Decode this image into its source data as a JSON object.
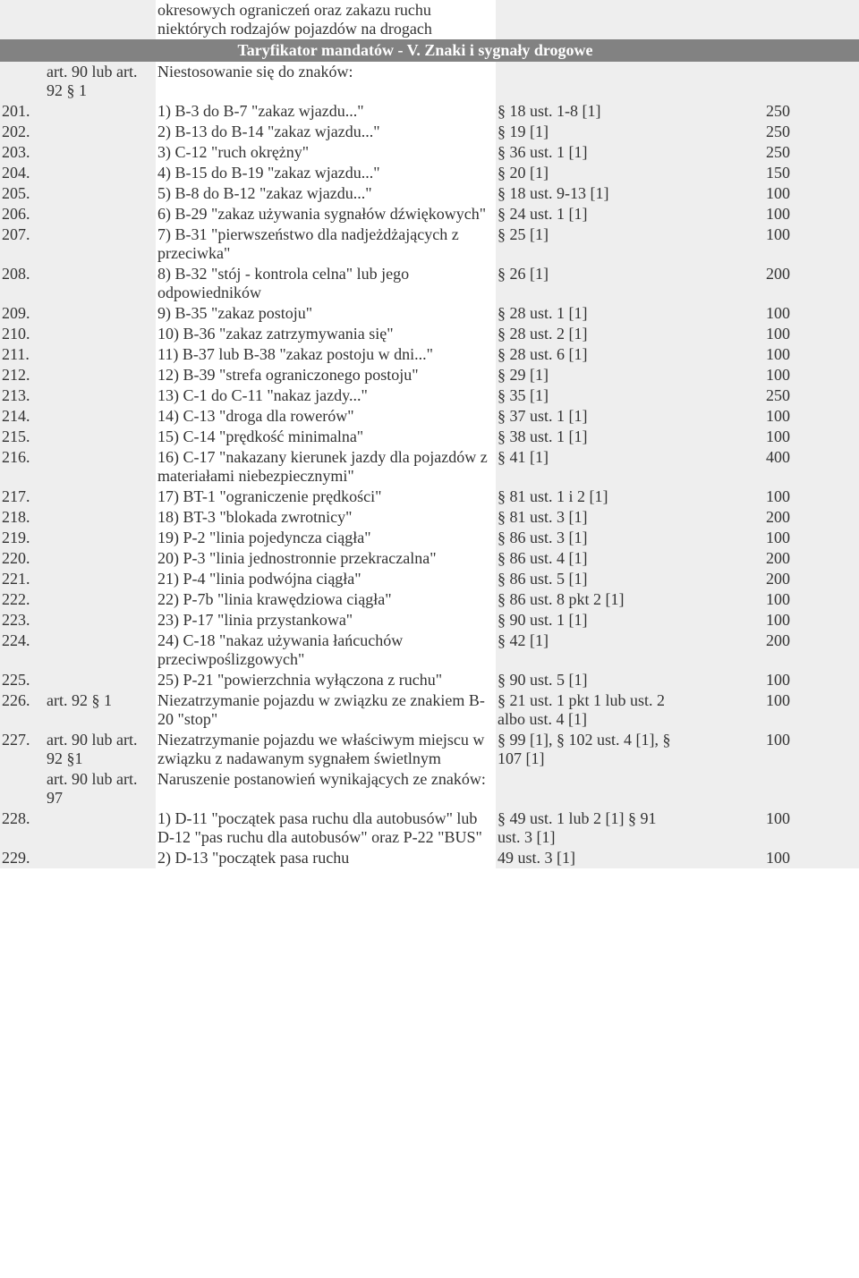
{
  "header_top": {
    "desc": "okresowych ograniczeń oraz zakazu ruchu niektórych rodzajów pojazdów na drogach"
  },
  "section_title": "Taryfikator mandatów - V. Znaki i sygnały drogowe",
  "intro_row": {
    "art": "art. 90 lub art. 92 § 1",
    "desc": "Niestosowanie się do znaków:"
  },
  "rows": [
    {
      "num": "201.",
      "art": "",
      "desc": "1) B-3 do B-7 \"zakaz wjazdu...\"",
      "ref": "§ 18 ust. 1-8 [1]",
      "pen": "250"
    },
    {
      "num": "202.",
      "art": "",
      "desc": "2) B-13 do B-14 \"zakaz wjazdu...\"",
      "ref": "§ 19 [1]",
      "pen": "250"
    },
    {
      "num": "203.",
      "art": "",
      "desc": "3) C-12 \"ruch okrężny\"",
      "ref": "§ 36 ust. 1 [1]",
      "pen": "250"
    },
    {
      "num": "204.",
      "art": "",
      "desc": "4) B-15 do B-19 \"zakaz wjazdu...\"",
      "ref": "§ 20 [1]",
      "pen": "150"
    },
    {
      "num": "205.",
      "art": "",
      "desc": "5) B-8 do B-12 \"zakaz wjazdu...\"",
      "ref": "§ 18 ust. 9-13 [1]",
      "pen": "100"
    },
    {
      "num": "206.",
      "art": "",
      "desc": "6) B-29 \"zakaz używania sygnałów dźwiękowych\"",
      "ref": "§ 24 ust. 1 [1]",
      "pen": "100"
    },
    {
      "num": "207.",
      "art": "",
      "desc": "7) B-31 \"pierwszeństwo dla nadjeżdżających z przeciwka\"",
      "ref": "§ 25 [1]",
      "pen": "100"
    },
    {
      "num": "208.",
      "art": "",
      "desc": "8) B-32 \"stój - kontrola celna\" lub jego odpowiedników",
      "ref": "§ 26 [1]",
      "pen": "200"
    },
    {
      "num": "209.",
      "art": "",
      "desc": "9) B-35 \"zakaz postoju\"",
      "ref": "§ 28 ust. 1 [1]",
      "pen": "100"
    },
    {
      "num": "210.",
      "art": "",
      "desc": "10) B-36 \"zakaz zatrzymywania się\"",
      "ref": "§ 28 ust. 2 [1]",
      "pen": "100"
    },
    {
      "num": "211.",
      "art": "",
      "desc": "11) B-37 lub B-38 \"zakaz postoju w dni...\"",
      "ref": "§ 28 ust. 6 [1]",
      "pen": "100"
    },
    {
      "num": "212.",
      "art": "",
      "desc": "12) B-39 \"strefa ograniczonego postoju\"",
      "ref": "§ 29 [1]",
      "pen": "100"
    },
    {
      "num": "213.",
      "art": "",
      "desc": "13) C-1 do C-11 \"nakaz jazdy...\"",
      "ref": "§ 35 [1]",
      "pen": "250"
    },
    {
      "num": "214.",
      "art": "",
      "desc": "14) C-13 \"droga dla rowerów\"",
      "ref": "§ 37 ust. 1 [1]",
      "pen": "100"
    },
    {
      "num": "215.",
      "art": "",
      "desc": "15) C-14 \"prędkość minimalna\"",
      "ref": "§ 38 ust. 1 [1]",
      "pen": "100"
    },
    {
      "num": "216.",
      "art": "",
      "desc": "16) C-17 \"nakazany kierunek jazdy dla pojazdów z materiałami niebezpiecznymi\"",
      "ref": "§ 41 [1]",
      "pen": "400"
    },
    {
      "num": "217.",
      "art": "",
      "desc": "17) BT-1 \"ograniczenie prędkości\"",
      "ref": "§ 81 ust. 1 i 2 [1]",
      "pen": "100"
    },
    {
      "num": "218.",
      "art": "",
      "desc": "18) BT-3 \"blokada zwrotnicy\"",
      "ref": "§ 81 ust. 3 [1]",
      "pen": "200"
    },
    {
      "num": "219.",
      "art": "",
      "desc": "19) P-2 \"linia pojedyncza ciągła\"",
      "ref": "§ 86 ust. 3 [1]",
      "pen": "100"
    },
    {
      "num": "220.",
      "art": "",
      "desc": "20) P-3 \"linia jednostronnie przekraczalna\"",
      "ref": "§ 86 ust. 4 [1]",
      "pen": "200"
    },
    {
      "num": "221.",
      "art": "",
      "desc": "21) P-4 \"linia podwójna ciągła\"",
      "ref": "§ 86 ust. 5 [1]",
      "pen": "200"
    },
    {
      "num": "222.",
      "art": "",
      "desc": "22) P-7b \"linia krawędziowa ciągła\"",
      "ref": "§ 86 ust. 8 pkt 2 [1]",
      "pen": "100"
    },
    {
      "num": "223.",
      "art": "",
      "desc": "23) P-17 \"linia przystankowa\"",
      "ref": "§ 90 ust. 1 [1]",
      "pen": "100"
    },
    {
      "num": "224.",
      "art": "",
      "desc": "24) C-18 \"nakaz używania łańcuchów przeciwpoślizgowych\"",
      "ref": "§ 42 [1]",
      "pen": "200"
    },
    {
      "num": "225.",
      "art": "",
      "desc": "25) P-21 \"powierzchnia wyłączona z ruchu\"",
      "ref": "§ 90 ust. 5 [1]",
      "pen": "100"
    },
    {
      "num": "226.",
      "art": "art. 92 § 1",
      "desc": "Niezatrzymanie pojazdu w związku ze znakiem B-20 \"stop\"",
      "ref": "§ 21 ust. 1 pkt 1 lub ust. 2 albo ust. 4 [1]",
      "pen": "100"
    },
    {
      "num": "227.",
      "art": "art. 90 lub art. 92 §1",
      "desc": "Niezatrzymanie pojazdu we właściwym miejscu w związku z nadawanym sygnałem świetlnym",
      "ref": "§ 99 [1], § 102 ust. 4 [1], § 107 [1]",
      "pen": "100"
    },
    {
      "num": "",
      "art": "art. 90 lub art. 97",
      "desc": "Naruszenie postanowień wynikających ze znaków:",
      "ref": "",
      "pen": ""
    },
    {
      "num": "228.",
      "art": "",
      "desc": "1) D-11 \"początek pasa ruchu dla autobusów\" lub D-12 \"pas ruchu dla autobusów\" oraz P-22 \"BUS\"",
      "ref": "§ 49 ust. 1 lub 2 [1] § 91 ust. 3 [1]",
      "pen": "100"
    },
    {
      "num": "229.",
      "art": "",
      "desc": "2) D-13 \"początek pasa ruchu",
      "ref": "49 ust. 3 [1]",
      "pen": "100"
    }
  ]
}
